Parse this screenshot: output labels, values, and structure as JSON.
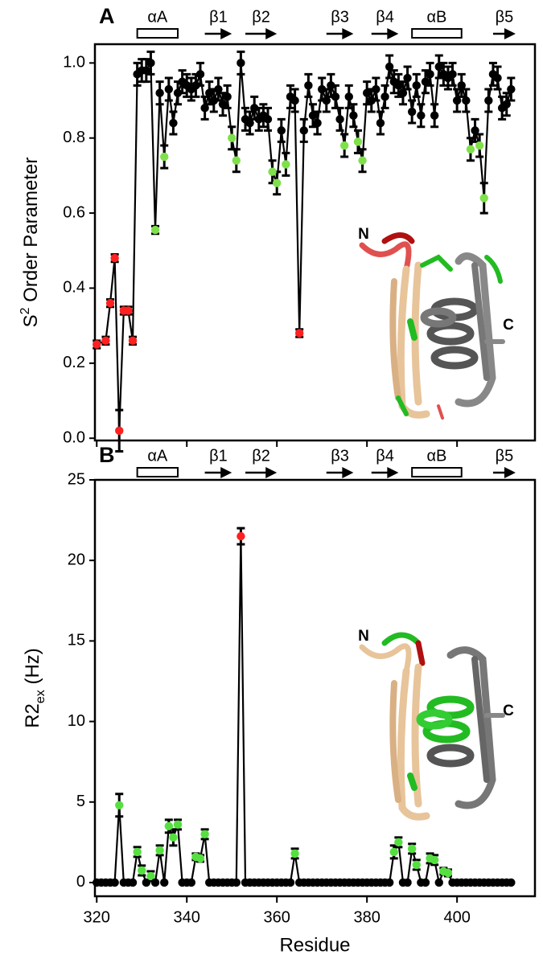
{
  "chart_data": [
    {
      "type": "line",
      "panel_label": "A",
      "ylabel": {
        "text": "S",
        "superscript": "2",
        "suffix": " Order Parameter"
      },
      "xlim": [
        319.6,
        417.3
      ],
      "xticks": [
        320,
        340,
        360,
        380,
        400
      ],
      "xtick_labels": false,
      "ylim": [
        -0.006,
        1.05
      ],
      "yticks": [
        {
          "value": 0,
          "label": "0.0"
        },
        {
          "value": 0.2,
          "label": "0.2"
        },
        {
          "value": 0.4,
          "label": "0.4"
        },
        {
          "value": 0.6,
          "label": "0.6"
        },
        {
          "value": 0.8,
          "label": "0.8"
        },
        {
          "value": 1,
          "label": "1.0"
        }
      ],
      "secondary_structure": [
        {
          "label": "αA",
          "type": "helix",
          "start": 329,
          "end": 338
        },
        {
          "label": "β1",
          "type": "strand",
          "start": 344,
          "end": 350
        },
        {
          "label": "β2",
          "type": "strand",
          "start": 353,
          "end": 360
        },
        {
          "label": "β3",
          "type": "strand",
          "start": 371,
          "end": 377
        },
        {
          "label": "β4",
          "type": "strand",
          "start": 381,
          "end": 387
        },
        {
          "label": "αB",
          "type": "helix",
          "start": 390,
          "end": 401
        },
        {
          "label": "β5",
          "type": "strand",
          "start": 408,
          "end": 413
        }
      ],
      "structure_labels": [
        "N",
        "C"
      ],
      "x": [
        320,
        322,
        323,
        324,
        325,
        326,
        327,
        328,
        329,
        330,
        331,
        332,
        333,
        334,
        335,
        336,
        337,
        338,
        339,
        340,
        341,
        342,
        343,
        344,
        345,
        346,
        347,
        348,
        349,
        350,
        351,
        352,
        353,
        354,
        355,
        356,
        357,
        358,
        359,
        360,
        361,
        362,
        363,
        364,
        365,
        366,
        367,
        368,
        369,
        370,
        371,
        372,
        373,
        374,
        375,
        376,
        377,
        378,
        379,
        380,
        381,
        382,
        383,
        384,
        385,
        386,
        387,
        388,
        389,
        390,
        391,
        392,
        393,
        394,
        395,
        396,
        397,
        398,
        399,
        400,
        401,
        402,
        403,
        404,
        405,
        406,
        407,
        408,
        409,
        410,
        411,
        412
      ],
      "series": [
        {
          "color": "#000000",
          "values": [
            0.25,
            0.26,
            0.36,
            0.48,
            0.02,
            0.34,
            0.34,
            0.26,
            0.97,
            0.98,
            0.98,
            1.0,
            0.555,
            0.92,
            0.75,
            0.93,
            0.84,
            0.92,
            0.95,
            0.94,
            0.93,
            0.94,
            0.97,
            0.88,
            0.92,
            0.9,
            0.93,
            0.89,
            0.91,
            0.8,
            0.74,
            1.0,
            0.85,
            0.84,
            0.88,
            0.85,
            0.86,
            0.85,
            0.71,
            0.68,
            0.82,
            0.73,
            0.91,
            0.9,
            0.28,
            0.82,
            0.94,
            0.86,
            0.84,
            0.93,
            0.9,
            0.94,
            0.91,
            0.85,
            0.78,
            0.91,
            0.86,
            0.79,
            0.74,
            0.92,
            0.9,
            0.93,
            0.84,
            0.91,
            0.99,
            0.95,
            0.94,
            0.92,
            0.96,
            0.87,
            0.94,
            0.86,
            0.95,
            0.97,
            0.86,
            0.99,
            0.97,
            0.96,
            0.97,
            0.9,
            0.94,
            0.9,
            0.77,
            0.82,
            0.78,
            0.64,
            0.9,
            0.97,
            0.96,
            0.88,
            0.89,
            0.93
          ],
          "errors": [
            0.01,
            0.01,
            0.01,
            0.01,
            0.055,
            0.01,
            0.01,
            0.01,
            0.03,
            0.03,
            0.03,
            0.03,
            0.01,
            0.03,
            0.03,
            0.03,
            0.03,
            0.03,
            0.03,
            0.03,
            0.03,
            0.03,
            0.03,
            0.03,
            0.03,
            0.03,
            0.03,
            0.03,
            0.03,
            0.03,
            0.03,
            0.03,
            0.03,
            0.03,
            0.03,
            0.03,
            0.03,
            0.03,
            0.03,
            0.03,
            0.03,
            0.03,
            0.03,
            0.03,
            0.01,
            0.03,
            0.03,
            0.03,
            0.03,
            0.03,
            0.03,
            0.03,
            0.03,
            0.03,
            0.03,
            0.03,
            0.03,
            0.03,
            0.03,
            0.03,
            0.03,
            0.03,
            0.03,
            0.03,
            0.03,
            0.03,
            0.03,
            0.03,
            0.03,
            0.03,
            0.03,
            0.03,
            0.03,
            0.03,
            0.03,
            0.03,
            0.03,
            0.03,
            0.03,
            0.03,
            0.03,
            0.03,
            0.03,
            0.03,
            0.03,
            0.04,
            0.03,
            0.03,
            0.03,
            0.03,
            0.03,
            0.03
          ],
          "marker_colors": [
            "#ff2020",
            "#ff2020",
            "#ff2020",
            "#ff2020",
            "#ff2020",
            "#ff2020",
            "#ff2020",
            "#ff2020",
            "#000000",
            "#000000",
            "#000000",
            "#000000",
            "#7ee04a",
            "#000000",
            "#7ee04a",
            "#000000",
            "#000000",
            "#000000",
            "#000000",
            "#000000",
            "#000000",
            "#000000",
            "#000000",
            "#000000",
            "#000000",
            "#000000",
            "#000000",
            "#000000",
            "#000000",
            "#7ee04a",
            "#7ee04a",
            "#000000",
            "#000000",
            "#000000",
            "#000000",
            "#000000",
            "#000000",
            "#000000",
            "#7ee04a",
            "#7ee04a",
            "#000000",
            "#7ee04a",
            "#000000",
            "#000000",
            "#ff2020",
            "#000000",
            "#000000",
            "#000000",
            "#000000",
            "#000000",
            "#000000",
            "#000000",
            "#000000",
            "#000000",
            "#7ee04a",
            "#000000",
            "#000000",
            "#7ee04a",
            "#7ee04a",
            "#000000",
            "#000000",
            "#000000",
            "#000000",
            "#000000",
            "#000000",
            "#000000",
            "#000000",
            "#000000",
            "#000000",
            "#000000",
            "#000000",
            "#000000",
            "#000000",
            "#000000",
            "#000000",
            "#000000",
            "#000000",
            "#000000",
            "#000000",
            "#000000",
            "#000000",
            "#000000",
            "#7ee04a",
            "#000000",
            "#7ee04a",
            "#7ee04a",
            "#000000",
            "#000000",
            "#000000",
            "#000000",
            "#000000",
            "#000000"
          ]
        }
      ]
    },
    {
      "type": "line",
      "panel_label": "B",
      "ylabel": {
        "text": "R2",
        "subscript": "ex",
        "suffix": " (Hz)"
      },
      "xlabel": "Residue",
      "xlim": [
        319.6,
        417.3
      ],
      "xticks": [
        320,
        340,
        360,
        380,
        400
      ],
      "xtick_labels": true,
      "ylim": [
        -0.85,
        25
      ],
      "yticks": [
        0,
        5,
        10,
        15,
        20,
        25
      ],
      "secondary_structure": [
        {
          "label": "αA",
          "type": "helix",
          "start": 329,
          "end": 338
        },
        {
          "label": "β1",
          "type": "strand",
          "start": 344,
          "end": 350
        },
        {
          "label": "β2",
          "type": "strand",
          "start": 353,
          "end": 360
        },
        {
          "label": "β3",
          "type": "strand",
          "start": 371,
          "end": 377
        },
        {
          "label": "β4",
          "type": "strand",
          "start": 381,
          "end": 387
        },
        {
          "label": "αB",
          "type": "helix",
          "start": 390,
          "end": 401
        },
        {
          "label": "β5",
          "type": "strand",
          "start": 408,
          "end": 413
        }
      ],
      "structure_labels": [
        "N",
        "C"
      ],
      "x": [
        320,
        321,
        322,
        323,
        324,
        325,
        326,
        327,
        328,
        329,
        330,
        331,
        332,
        333,
        334,
        335,
        336,
        337,
        338,
        339,
        340,
        341,
        342,
        343,
        344,
        345,
        346,
        347,
        348,
        349,
        350,
        351,
        352,
        353,
        354,
        355,
        356,
        357,
        358,
        359,
        360,
        361,
        362,
        363,
        364,
        365,
        366,
        367,
        368,
        369,
        370,
        371,
        372,
        373,
        374,
        375,
        376,
        377,
        378,
        379,
        380,
        381,
        382,
        383,
        384,
        385,
        386,
        387,
        388,
        389,
        390,
        391,
        392,
        393,
        394,
        395,
        396,
        397,
        398,
        399,
        400,
        401,
        402,
        403,
        404,
        405,
        406,
        407,
        408,
        409,
        410,
        411,
        412
      ],
      "series": [
        {
          "color": "#000000",
          "values": [
            0,
            0,
            0,
            0,
            0,
            4.8,
            0,
            0,
            0,
            1.9,
            0.75,
            0,
            0.4,
            0,
            2.0,
            0,
            3.5,
            2.8,
            3.6,
            0,
            0,
            0,
            1.6,
            1.5,
            3.0,
            0,
            0,
            0,
            0,
            0,
            0,
            0,
            21.5,
            0,
            0,
            0,
            0,
            0,
            0,
            0,
            0,
            0,
            0,
            0,
            1.8,
            0,
            0,
            0,
            0,
            0,
            0,
            0,
            0,
            0,
            0,
            0,
            0,
            0,
            0,
            0,
            0,
            0,
            0,
            0,
            0,
            0,
            1.9,
            2.5,
            0,
            0,
            2.1,
            1.1,
            0,
            0,
            1.5,
            1.4,
            0,
            0.7,
            0.6,
            0,
            0,
            0,
            0,
            0,
            0,
            0,
            0,
            0,
            0,
            0,
            0,
            0,
            0
          ],
          "errors": [
            null,
            null,
            null,
            null,
            null,
            0.7,
            null,
            null,
            null,
            0.3,
            0.3,
            null,
            0.3,
            null,
            0.3,
            null,
            0.4,
            0.5,
            0.3,
            null,
            null,
            null,
            0.2,
            0.2,
            0.3,
            null,
            null,
            null,
            null,
            null,
            null,
            null,
            0.5,
            null,
            null,
            null,
            null,
            null,
            null,
            null,
            null,
            null,
            null,
            null,
            0.3,
            null,
            null,
            null,
            null,
            null,
            null,
            null,
            null,
            null,
            null,
            null,
            null,
            null,
            null,
            null,
            null,
            null,
            null,
            null,
            null,
            null,
            0.4,
            0.3,
            null,
            null,
            0.3,
            0.3,
            null,
            null,
            0.3,
            0.3,
            null,
            0.2,
            0.2,
            null,
            null,
            null,
            null,
            null,
            null,
            null,
            null,
            null,
            null,
            null,
            null,
            null,
            null
          ],
          "marker_colors": [
            "#000000",
            "#000000",
            "#000000",
            "#000000",
            "#000000",
            "#55e040",
            "#000000",
            "#000000",
            "#000000",
            "#55e040",
            "#55e040",
            "#000000",
            "#55e040",
            "#000000",
            "#55e040",
            "#000000",
            "#55e040",
            "#55e040",
            "#55e040",
            "#000000",
            "#000000",
            "#000000",
            "#55e040",
            "#55e040",
            "#55e040",
            "#000000",
            "#000000",
            "#000000",
            "#000000",
            "#000000",
            "#000000",
            "#000000",
            "#ff2020",
            "#000000",
            "#000000",
            "#000000",
            "#000000",
            "#000000",
            "#000000",
            "#000000",
            "#000000",
            "#000000",
            "#000000",
            "#000000",
            "#55e040",
            "#000000",
            "#000000",
            "#000000",
            "#000000",
            "#000000",
            "#000000",
            "#000000",
            "#000000",
            "#000000",
            "#000000",
            "#000000",
            "#000000",
            "#000000",
            "#000000",
            "#000000",
            "#000000",
            "#000000",
            "#000000",
            "#000000",
            "#000000",
            "#000000",
            "#55e040",
            "#55e040",
            "#000000",
            "#000000",
            "#55e040",
            "#55e040",
            "#000000",
            "#000000",
            "#55e040",
            "#55e040",
            "#000000",
            "#55e040",
            "#55e040",
            "#000000",
            "#000000",
            "#000000",
            "#000000",
            "#000000",
            "#000000",
            "#000000",
            "#000000",
            "#000000",
            "#000000",
            "#000000",
            "#000000",
            "#000000",
            "#000000"
          ]
        }
      ]
    }
  ]
}
